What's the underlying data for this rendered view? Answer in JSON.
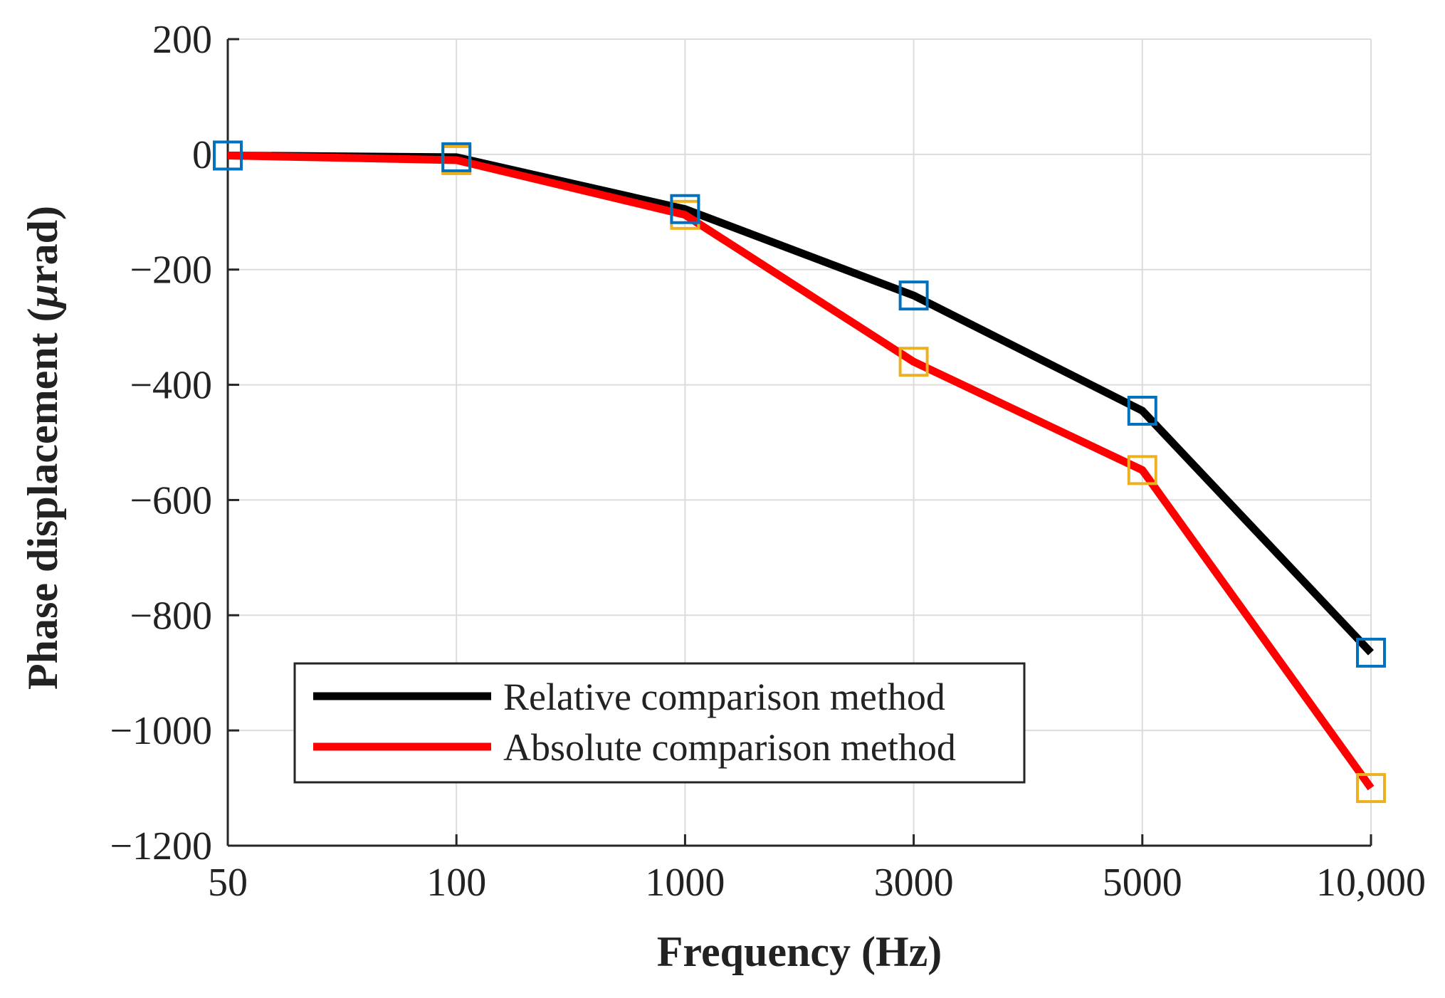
{
  "chart_data": {
    "type": "line",
    "title": "",
    "xlabel": "Frequency (Hz)",
    "ylabel_prefix": "Phase displacement (",
    "ylabel_unit_symbol": "μ",
    "ylabel_suffix": "rad)",
    "categories": [
      "50",
      "100",
      "1000",
      "3000",
      "5000",
      "10,000"
    ],
    "ylim": [
      -1200,
      200
    ],
    "yticks": [
      200,
      0,
      -200,
      -400,
      -600,
      -800,
      -1000,
      -1200
    ],
    "ytick_labels": [
      "200",
      "0",
      "−200",
      "−400",
      "−600",
      "−800",
      "−1000",
      "−1200"
    ],
    "grid": true,
    "legend_position": "bottom-left",
    "series": [
      {
        "name": "Relative comparison method",
        "line_color": "#000000",
        "marker_color": "#0072BD",
        "marker": "square",
        "values": [
          -2,
          -5,
          -95,
          -245,
          -445,
          -865
        ]
      },
      {
        "name": "Absolute comparison method",
        "line_color": "#FF0000",
        "marker_color": "#EDB120",
        "marker": "square",
        "values": [
          -2,
          -10,
          -105,
          -360,
          -548,
          -1100
        ]
      }
    ]
  }
}
